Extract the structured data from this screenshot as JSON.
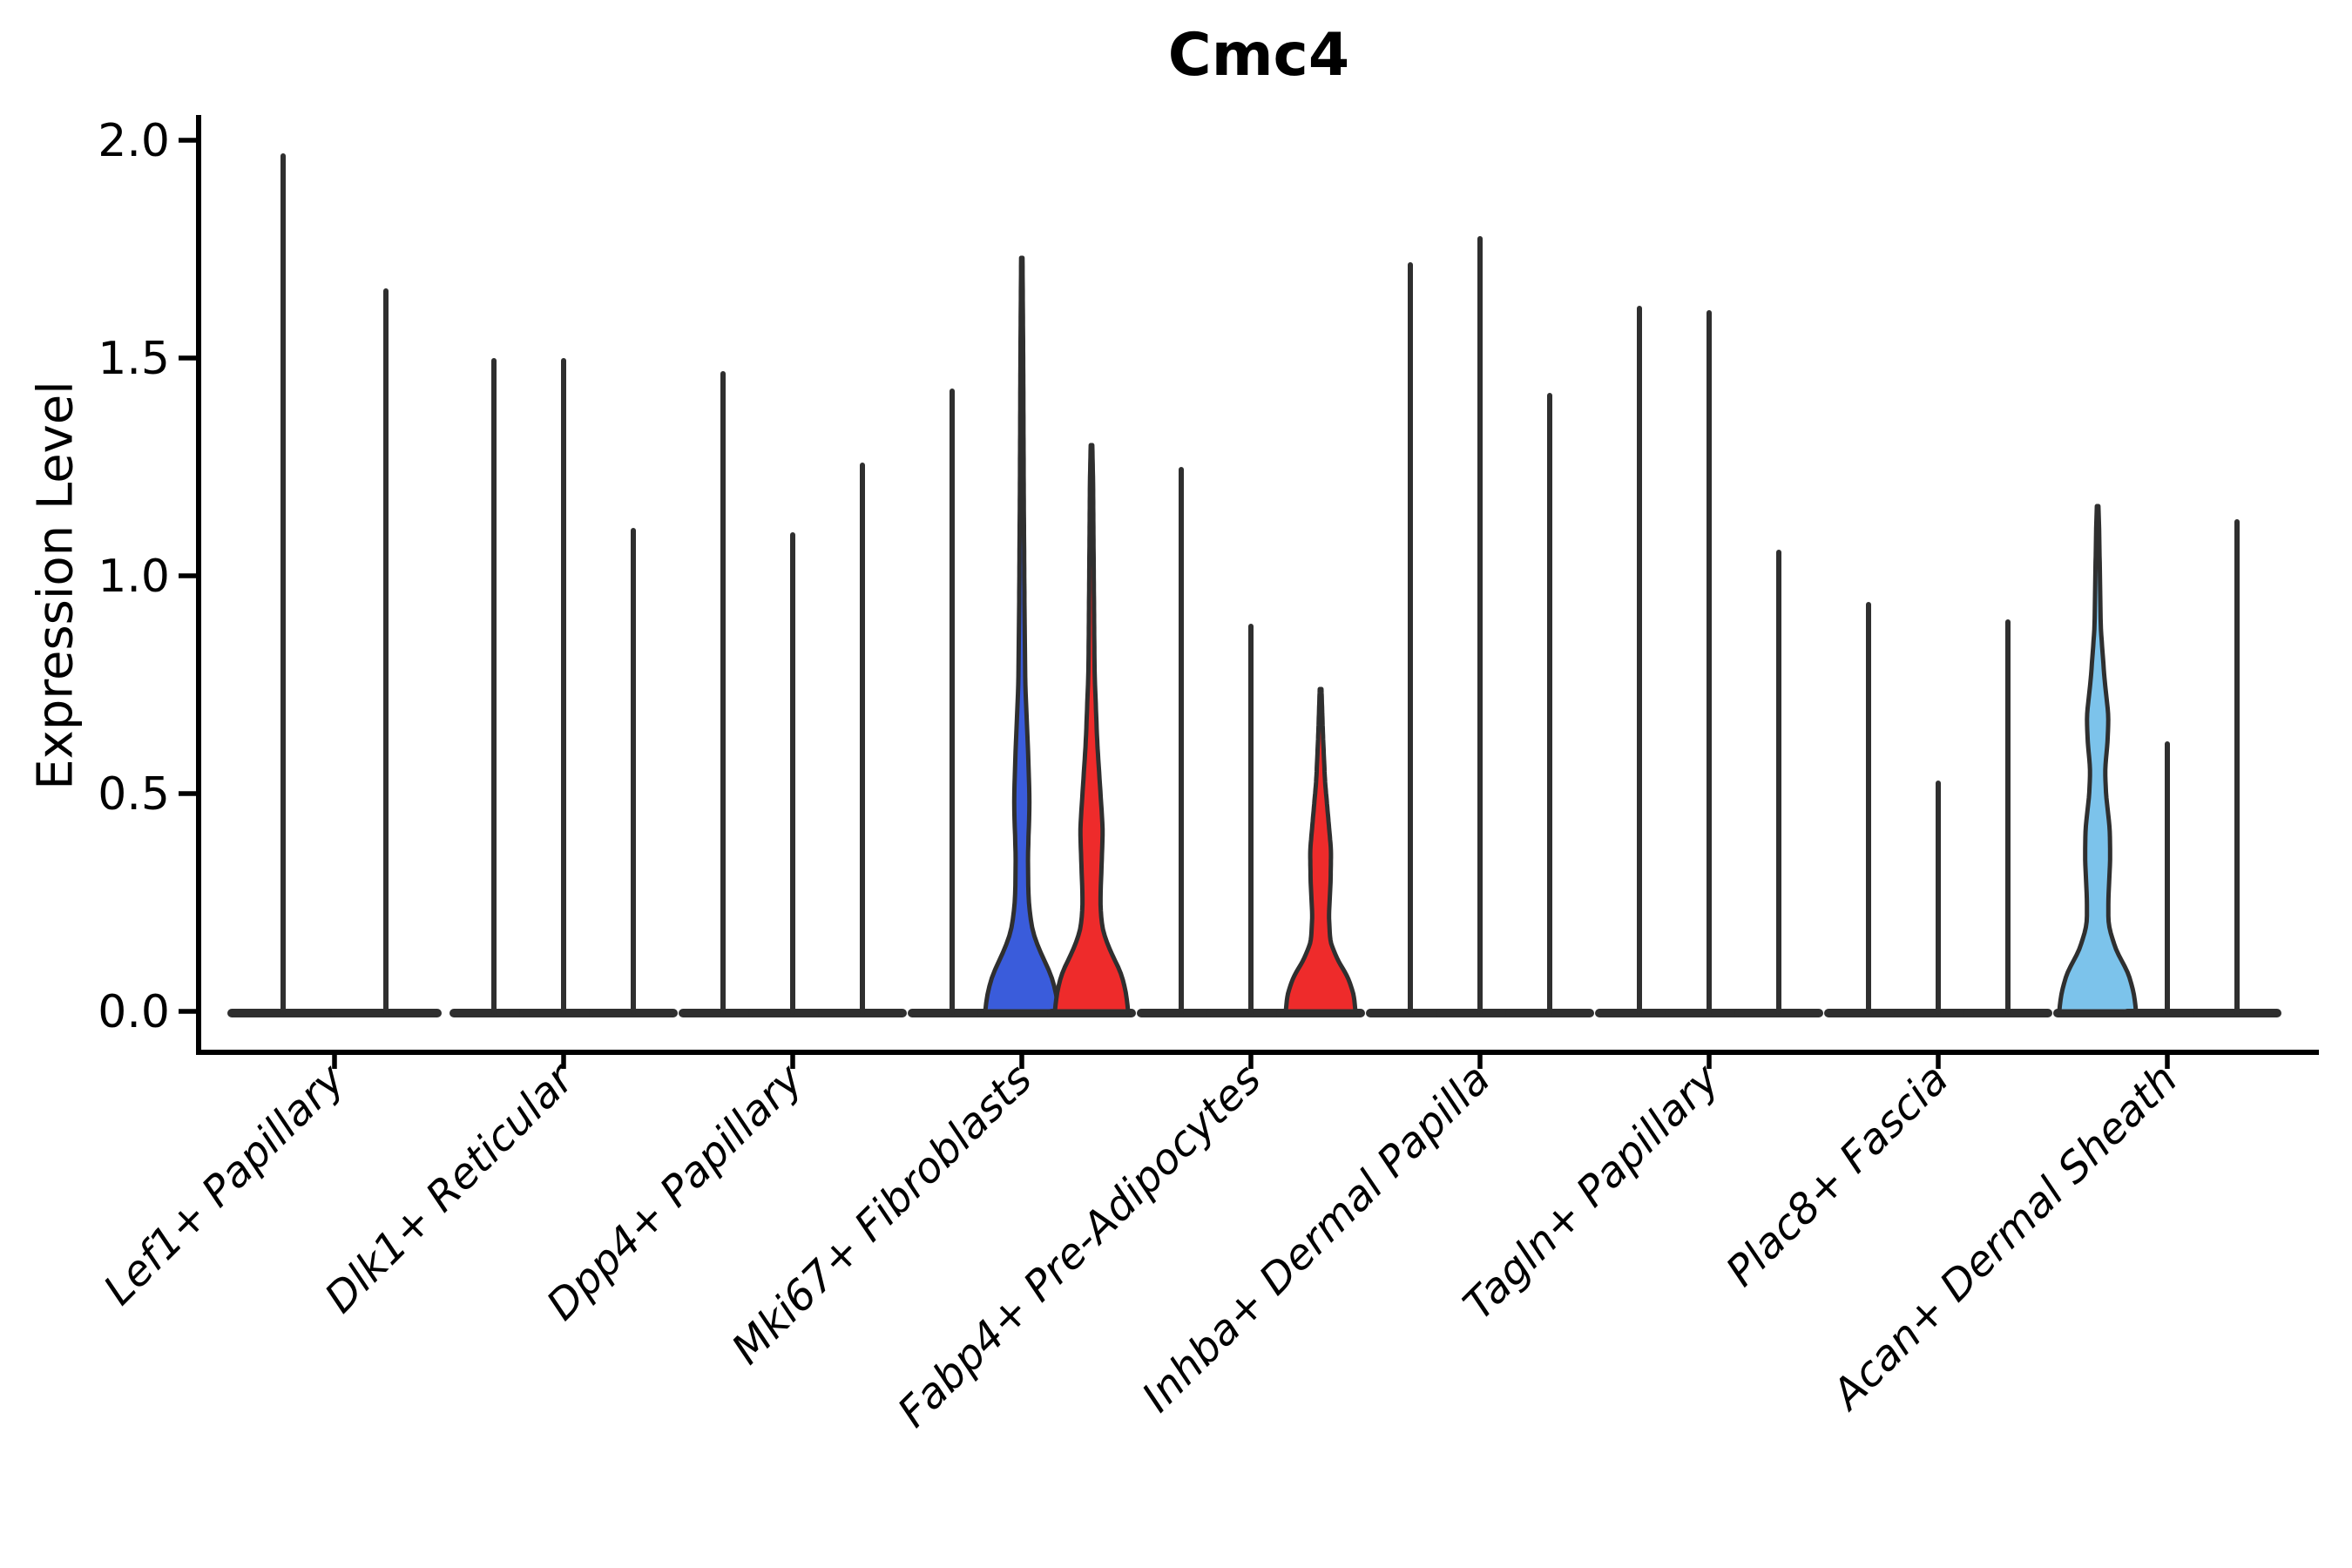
{
  "title": "Cmc4",
  "axes": {
    "ylabel": "Expression Level",
    "xlabel": "",
    "ytick_labels": [
      "0.0",
      "0.5",
      "1.0",
      "1.5",
      "2.0"
    ]
  },
  "colors": {
    "violin_outline": "#2F2F2F",
    "axis_black": "#000000",
    "highlight_blue": "#3A5CDB",
    "highlight_red": "#EE2B2B",
    "highlight_light_blue": "#7CC3EB",
    "background": "#FFFFFF"
  },
  "chart_data": {
    "type": "violin",
    "title": "Cmc4",
    "xlabel": "",
    "ylabel": "Expression Level",
    "ylim": [
      0.0,
      2.05
    ],
    "yticks": [
      0.0,
      0.5,
      1.0,
      1.5,
      2.0
    ],
    "grid": false,
    "legend": "none",
    "categories": [
      "Lef1+ Papillary",
      "Dlk1+ Reticular",
      "Dpp4+ Papillary",
      "Mki67+ Fibroblasts",
      "Fabp4+ Pre-Adipocytes",
      "Inhba+ Dermal Papilla",
      "Tagln+ Papillary",
      "Plac8+ Fascia",
      "Acan+ Dermal Sheath"
    ],
    "groups": [
      {
        "category": "Lef1+ Papillary",
        "violins": [
          {
            "max": 1.97,
            "fill": "none"
          },
          {
            "max": 1.66,
            "fill": "none"
          }
        ]
      },
      {
        "category": "Dlk1+ Reticular",
        "violins": [
          {
            "max": 1.5,
            "fill": "none"
          },
          {
            "max": 1.5,
            "fill": "none"
          },
          {
            "max": 1.11,
            "fill": "none"
          }
        ]
      },
      {
        "category": "Dpp4+ Papillary",
        "violins": [
          {
            "max": 1.47,
            "fill": "none"
          },
          {
            "max": 1.1,
            "fill": "none"
          },
          {
            "max": 1.26,
            "fill": "none"
          }
        ]
      },
      {
        "category": "Mki67+ Fibroblasts",
        "violins": [
          {
            "max": 1.43,
            "fill": "none"
          },
          {
            "max": 1.73,
            "fill": "highlight_blue",
            "profile": [
              [
                0,
                42
              ],
              [
                0.04,
                40
              ],
              [
                0.09,
                33
              ],
              [
                0.14,
                20
              ],
              [
                0.19,
                11
              ],
              [
                0.26,
                7.5
              ],
              [
                0.36,
                7
              ],
              [
                0.48,
                9
              ],
              [
                0.58,
                7.5
              ],
              [
                0.75,
                4.0
              ],
              [
                0.95,
                3.0
              ],
              [
                1.2,
                2.2
              ],
              [
                1.5,
                1.6
              ],
              [
                1.73,
                0.8
              ]
            ]
          },
          {
            "max": 1.3,
            "fill": "highlight_red",
            "profile": [
              [
                0,
                42
              ],
              [
                0.04,
                40
              ],
              [
                0.09,
                34
              ],
              [
                0.14,
                21
              ],
              [
                0.19,
                12
              ],
              [
                0.25,
                10
              ],
              [
                0.33,
                11.5
              ],
              [
                0.42,
                13
              ],
              [
                0.51,
                10
              ],
              [
                0.62,
                6.5
              ],
              [
                0.78,
                3.5
              ],
              [
                1.0,
                2.6
              ],
              [
                1.22,
                1.8
              ],
              [
                1.3,
                0.9
              ]
            ]
          }
        ]
      },
      {
        "category": "Fabp4+ Pre-Adipocytes",
        "violins": [
          {
            "max": 1.25,
            "fill": "none"
          },
          {
            "max": 0.89,
            "fill": "none"
          },
          {
            "max": 0.74,
            "fill": "highlight_red",
            "profile": [
              [
                0,
                40
              ],
              [
                0.04,
                38
              ],
              [
                0.08,
                31
              ],
              [
                0.12,
                19
              ],
              [
                0.16,
                11
              ],
              [
                0.22,
                9.5
              ],
              [
                0.3,
                11.5
              ],
              [
                0.37,
                12
              ],
              [
                0.45,
                8.5
              ],
              [
                0.53,
                5
              ],
              [
                0.64,
                2.6
              ],
              [
                0.74,
                1.0
              ]
            ]
          }
        ]
      },
      {
        "category": "Inhba+ Dermal Papilla",
        "violins": [
          {
            "max": 1.72,
            "fill": "none"
          },
          {
            "max": 1.78,
            "fill": "none"
          },
          {
            "max": 1.42,
            "fill": "none"
          }
        ]
      },
      {
        "category": "Tagln+ Papillary",
        "violins": [
          {
            "max": 1.62,
            "fill": "none"
          },
          {
            "max": 1.61,
            "fill": "none"
          },
          {
            "max": 1.06,
            "fill": "none"
          }
        ]
      },
      {
        "category": "Plac8+ Fascia",
        "violins": [
          {
            "max": 0.94,
            "fill": "none"
          },
          {
            "max": 0.53,
            "fill": "none"
          },
          {
            "max": 0.9,
            "fill": "none"
          }
        ]
      },
      {
        "category": "Acan+ Dermal Sheath",
        "violins": [
          {
            "max": 1.16,
            "fill": "highlight_light_blue",
            "profile": [
              [
                0,
                44
              ],
              [
                0.04,
                42
              ],
              [
                0.09,
                35
              ],
              [
                0.14,
                21
              ],
              [
                0.2,
                12
              ],
              [
                0.27,
                12.5
              ],
              [
                0.35,
                14.5
              ],
              [
                0.42,
                14
              ],
              [
                0.5,
                9.5
              ],
              [
                0.56,
                8.5
              ],
              [
                0.62,
                11.5
              ],
              [
                0.68,
                12.5
              ],
              [
                0.76,
                8
              ],
              [
                0.88,
                3.6
              ],
              [
                1.0,
                2.6
              ],
              [
                1.1,
                1.8
              ],
              [
                1.16,
                0.9
              ]
            ]
          },
          {
            "max": 0.62,
            "fill": "none"
          },
          {
            "max": 1.13,
            "fill": "none"
          }
        ]
      }
    ]
  }
}
